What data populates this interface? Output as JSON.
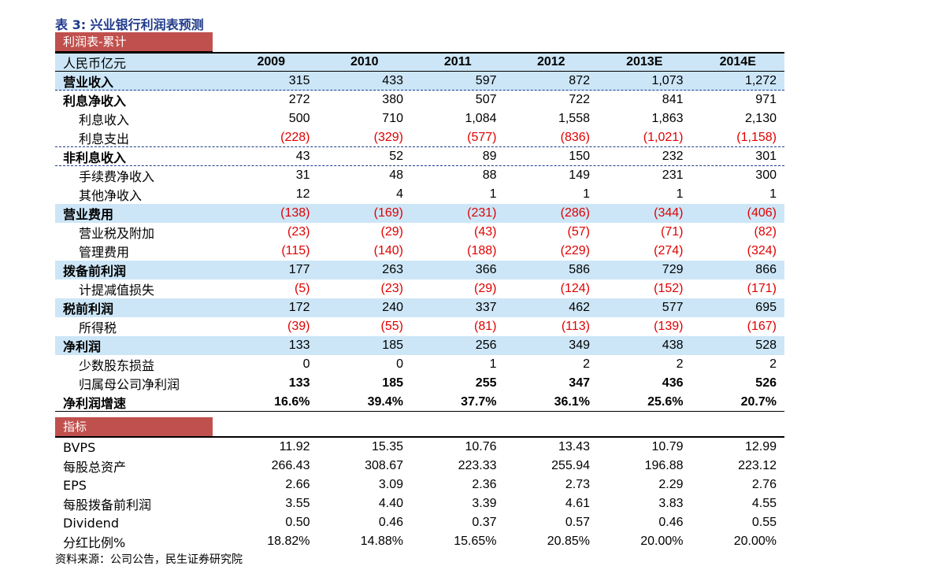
{
  "title": "表 3: 兴业银行利润表预测",
  "section1": "利润表-累计",
  "section2": "指标",
  "header": {
    "label": "人民币亿元",
    "years": [
      "2009",
      "2010",
      "2011",
      "2012",
      "2013E",
      "2014E"
    ]
  },
  "income_rows": [
    {
      "label": "营业收入",
      "values": [
        "315",
        "433",
        "597",
        "872",
        "1,073",
        "1,272"
      ]
    },
    {
      "label": "利息净收入",
      "values": [
        "272",
        "380",
        "507",
        "722",
        "841",
        "971"
      ]
    },
    {
      "label": "利息收入",
      "values": [
        "500",
        "710",
        "1,084",
        "1,558",
        "1,863",
        "2,130"
      ]
    },
    {
      "label": "利息支出",
      "values": [
        "(228)",
        "(329)",
        "(577)",
        "(836)",
        "(1,021)",
        "(1,158)"
      ]
    },
    {
      "label": "非利息收入",
      "values": [
        "43",
        "52",
        "89",
        "150",
        "232",
        "301"
      ]
    },
    {
      "label": "手续费净收入",
      "values": [
        "31",
        "48",
        "88",
        "149",
        "231",
        "300"
      ]
    },
    {
      "label": "其他净收入",
      "values": [
        "12",
        "4",
        "1",
        "1",
        "1",
        "1"
      ]
    },
    {
      "label": "营业费用",
      "values": [
        "(138)",
        "(169)",
        "(231)",
        "(286)",
        "(344)",
        "(406)"
      ]
    },
    {
      "label": "营业税及附加",
      "values": [
        "(23)",
        "(29)",
        "(43)",
        "(57)",
        "(71)",
        "(82)"
      ]
    },
    {
      "label": "管理费用",
      "values": [
        "(115)",
        "(140)",
        "(188)",
        "(229)",
        "(274)",
        "(324)"
      ]
    },
    {
      "label": "拨备前利润",
      "values": [
        "177",
        "263",
        "366",
        "586",
        "729",
        "866"
      ]
    },
    {
      "label": "计提减值损失",
      "values": [
        "(5)",
        "(23)",
        "(29)",
        "(124)",
        "(152)",
        "(171)"
      ]
    },
    {
      "label": "税前利润",
      "values": [
        "172",
        "240",
        "337",
        "462",
        "577",
        "695"
      ]
    },
    {
      "label": "所得税",
      "values": [
        "(39)",
        "(55)",
        "(81)",
        "(113)",
        "(139)",
        "(167)"
      ]
    },
    {
      "label": "净利润",
      "values": [
        "133",
        "185",
        "256",
        "349",
        "438",
        "528"
      ]
    },
    {
      "label": "少数股东损益",
      "values": [
        "0",
        "0",
        "1",
        "2",
        "2",
        "2"
      ]
    },
    {
      "label": "归属母公司净利润",
      "values": [
        "133",
        "185",
        "255",
        "347",
        "436",
        "526"
      ]
    },
    {
      "label": "净利润增速",
      "values": [
        "16.6%",
        "39.4%",
        "37.7%",
        "36.1%",
        "25.6%",
        "20.7%"
      ]
    }
  ],
  "metric_rows": [
    {
      "label": "BVPS",
      "values": [
        "11.92",
        "15.35",
        "10.76",
        "13.43",
        "10.79",
        "12.99"
      ]
    },
    {
      "label": "每股总资产",
      "values": [
        "266.43",
        "308.67",
        "223.33",
        "255.94",
        "196.88",
        "223.12"
      ]
    },
    {
      "label": "EPS",
      "values": [
        "2.66",
        "3.09",
        "2.36",
        "2.73",
        "2.29",
        "2.76"
      ]
    },
    {
      "label": "每股拨备前利润",
      "values": [
        "3.55",
        "4.40",
        "3.39",
        "4.61",
        "3.83",
        "4.55"
      ]
    },
    {
      "label": "Dividend",
      "values": [
        "0.50",
        "0.46",
        "0.37",
        "0.57",
        "0.46",
        "0.55"
      ]
    },
    {
      "label": "分红比例%",
      "values": [
        "18.82%",
        "14.88%",
        "15.65%",
        "20.85%",
        "20.00%",
        "20.00%"
      ]
    }
  ],
  "source": "资料来源：公司公告，民生证券研究院",
  "colors": {
    "accent_bar": "#c0504d",
    "highlight": "#cce6f7",
    "negative": "#e00000"
  }
}
